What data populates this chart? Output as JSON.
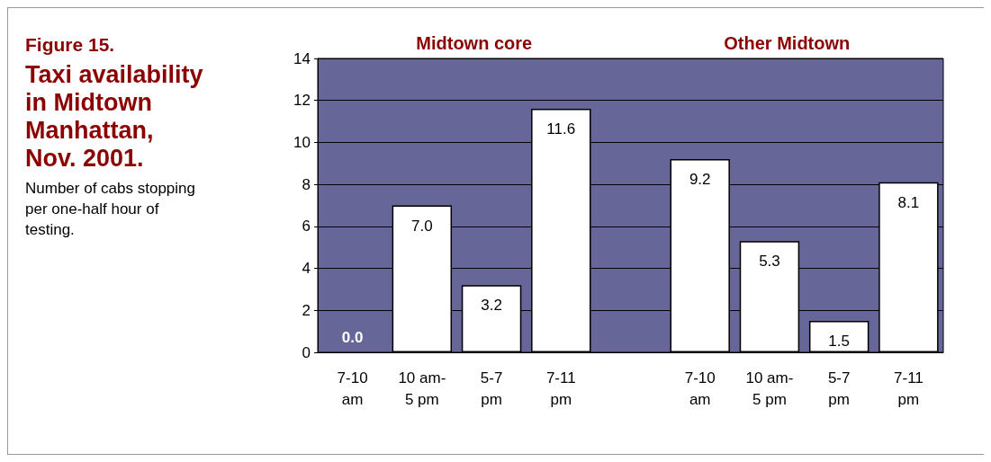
{
  "chart_data": {
    "type": "bar",
    "title": "Taxi availability in Midtown Manhattan, Nov. 2001.",
    "subtitle": "Number of cabs stopping per one-half hour of testing.",
    "annotations": [
      "Figure 15.",
      "Midtown core",
      "Other Midtown"
    ],
    "categories": [
      "7-10\nam",
      "10 am-\n5 pm",
      "5-7\npm",
      "7-11\npm",
      null,
      "7-10\nam",
      "10 am-\n5 pm",
      "5-7\npm",
      "7-11\npm"
    ],
    "values": [
      0.0,
      7.0,
      3.2,
      11.6,
      null,
      9.2,
      5.3,
      1.5,
      8.1
    ],
    "value_labels": [
      "0.0",
      "7.0",
      "3.2",
      "11.6",
      null,
      "9.2",
      "5.3",
      "1.5",
      "8.1"
    ],
    "color": "#ffffff",
    "ylim": [
      0,
      14
    ],
    "yticks": [
      0,
      2,
      4,
      6,
      8,
      10,
      12,
      14
    ],
    "grid": "y"
  }
}
